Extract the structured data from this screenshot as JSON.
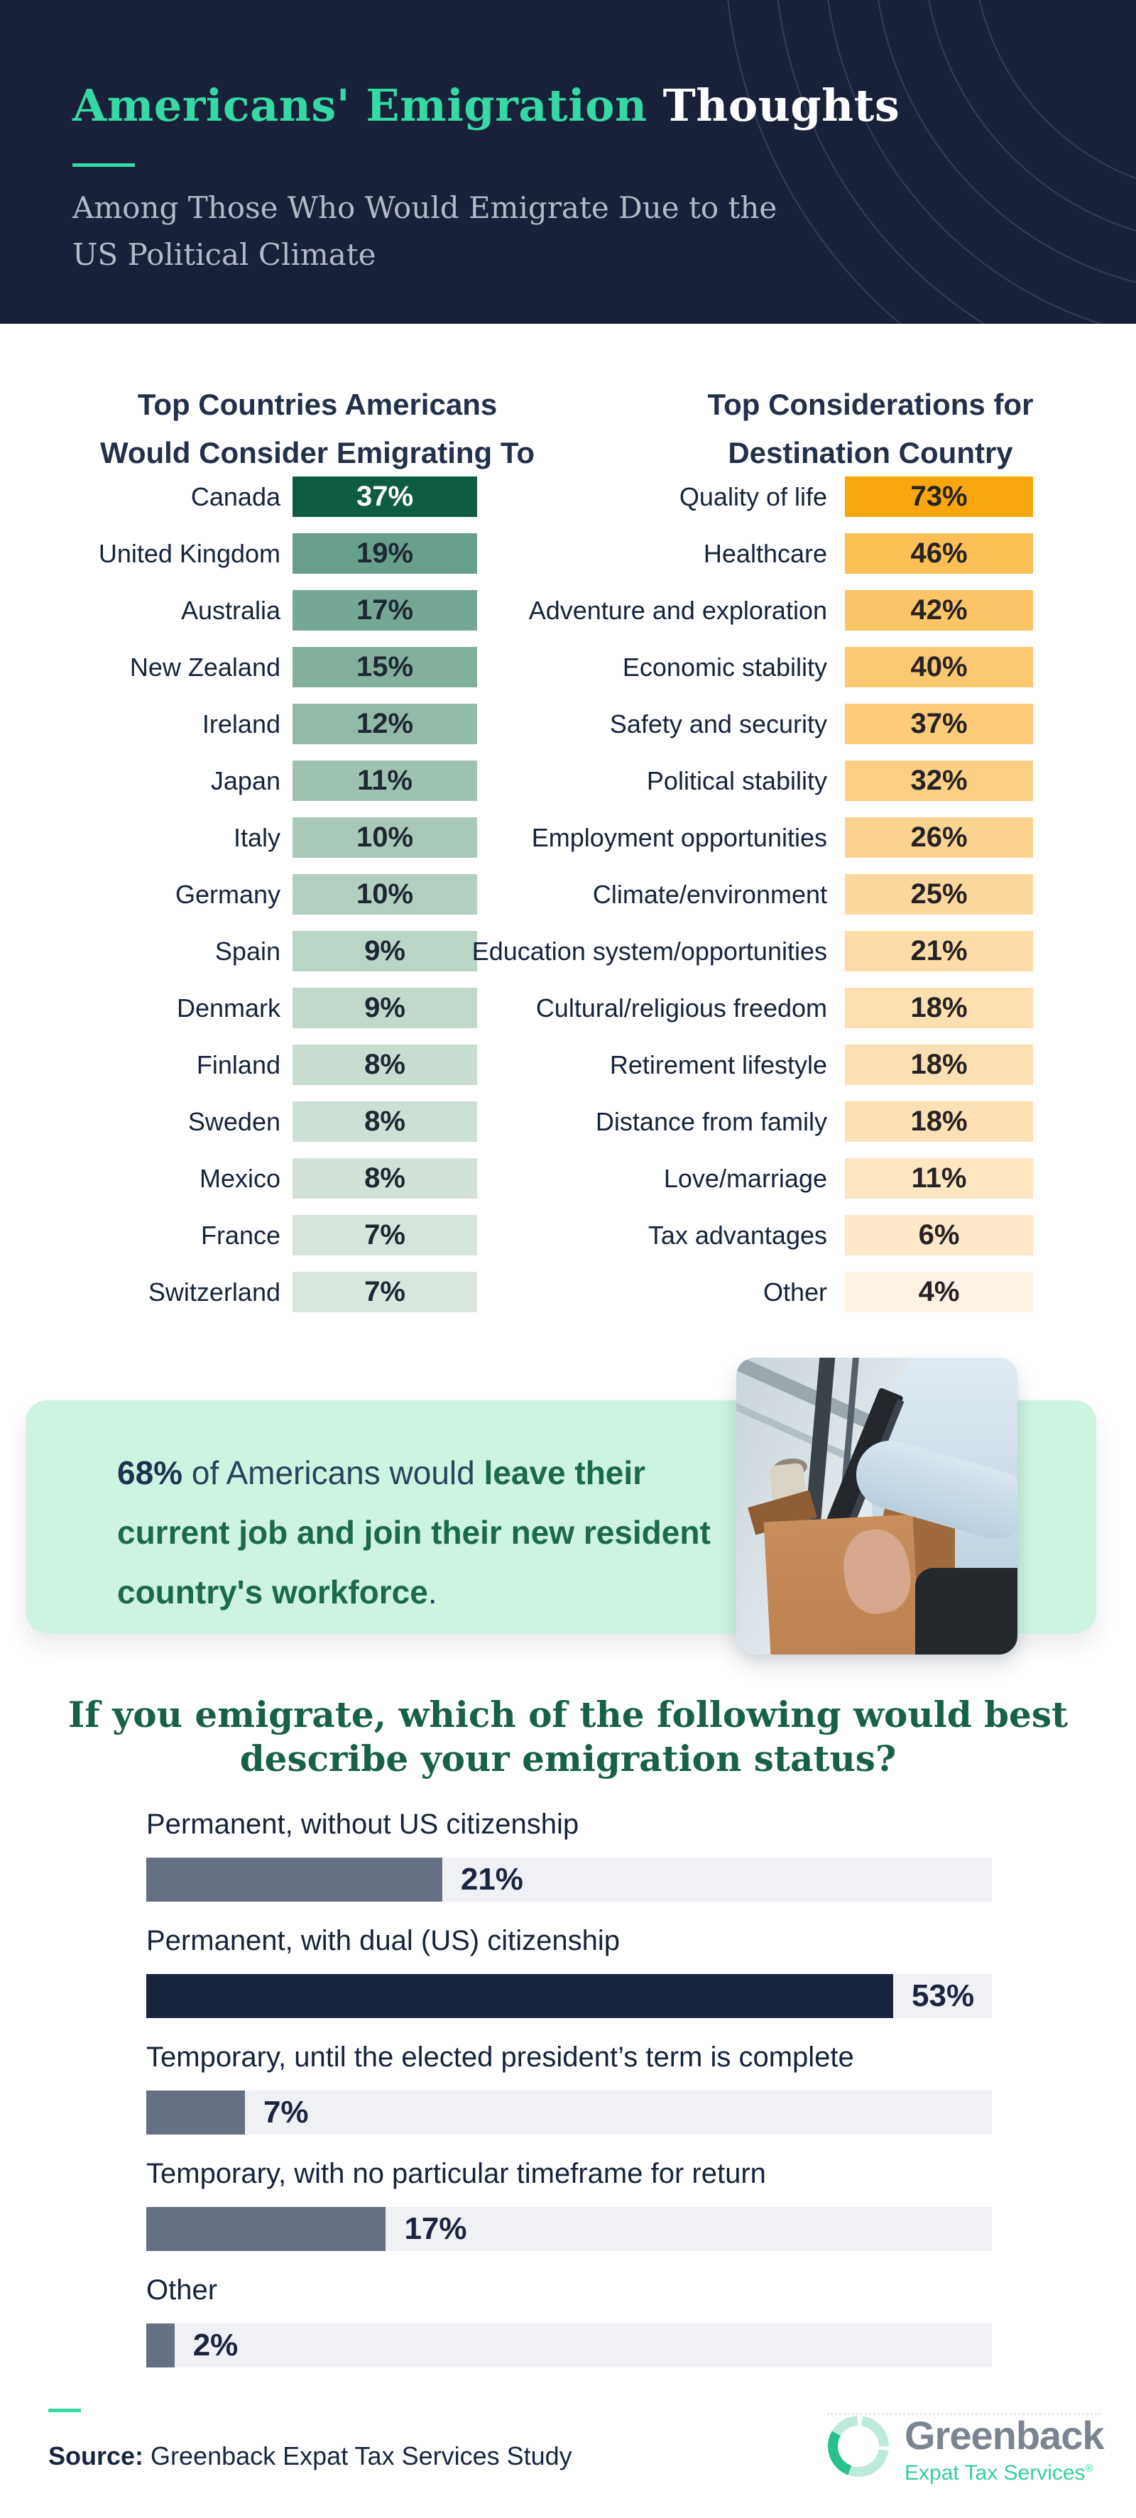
{
  "header": {
    "title_primary": "Americans' Emigration",
    "title_secondary": " Thoughts",
    "subtitle_line1": "Among Those Who Would Emigrate Due to the",
    "subtitle_line2": "US Political Climate",
    "accent_color": "#34d9a3",
    "bg_color": "#192138"
  },
  "chart_data": [
    {
      "type": "bar",
      "title": "Top Countries Americans Would Consider Emigrating To",
      "title_lines": [
        "Top Countries Americans",
        "Would Consider Emigrating To"
      ],
      "orientation": "horizontal",
      "style": "uniform-width bars, green color ramp encodes rank",
      "categories": [
        "Canada",
        "United Kingdom",
        "Australia",
        "New Zealand",
        "Ireland",
        "Japan",
        "Italy",
        "Germany",
        "Spain",
        "Denmark",
        "Finland",
        "Sweden",
        "Mexico",
        "France",
        "Switzerland"
      ],
      "values": [
        37,
        19,
        17,
        15,
        12,
        11,
        10,
        10,
        9,
        9,
        8,
        8,
        8,
        7,
        7
      ],
      "bar_colors": [
        "#0e5c43",
        "#679f8b",
        "#74a794",
        "#82b09d",
        "#92baa8",
        "#9fc2b0",
        "#aac8b8",
        "#b2cfbf",
        "#bad4c6",
        "#c1d8cb",
        "#c8dcd0",
        "#cde0d5",
        "#d2e2d8",
        "#d6e5db",
        "#dae7df"
      ],
      "value_colors": [
        "#ffffff",
        "#1e2733",
        "#1e2733",
        "#1e2733",
        "#1e2733",
        "#1e2733",
        "#1e2733",
        "#1e2733",
        "#1e2733",
        "#1e2733",
        "#1e2733",
        "#1e2733",
        "#1e2733",
        "#1e2733",
        "#1e2733"
      ]
    },
    {
      "type": "bar",
      "title": "Top Considerations for Destination Country",
      "title_lines": [
        "Top Considerations for",
        "Destination Country"
      ],
      "orientation": "horizontal",
      "style": "uniform-width bars, orange color ramp encodes rank",
      "categories": [
        "Quality of life",
        "Healthcare",
        "Adventure and exploration",
        "Economic stability",
        "Safety and security",
        "Political stability",
        "Employment opportunities",
        "Climate/environment",
        "Education system/opportunities",
        "Cultural/religious freedom",
        "Retirement lifestyle",
        "Distance from family",
        "Love/marriage",
        "Tax advantages",
        "Other"
      ],
      "values": [
        73,
        46,
        42,
        40,
        37,
        32,
        26,
        25,
        21,
        18,
        18,
        18,
        11,
        6,
        4
      ],
      "bar_colors": [
        "#f7a70d",
        "#fabf55",
        "#fbc567",
        "#fbc872",
        "#fbcb7a",
        "#fccf85",
        "#fcd492",
        "#fdd89d",
        "#fddca8",
        "#fddfb0",
        "#fde0b2",
        "#fde1b5",
        "#fee6c1",
        "#fee8c8",
        "#fdf2e3"
      ],
      "value_colors": [
        "#262225",
        "#262225",
        "#262225",
        "#262225",
        "#262225",
        "#262225",
        "#262225",
        "#262225",
        "#262225",
        "#262225",
        "#262225",
        "#262225",
        "#262225",
        "#262225",
        "#262225"
      ]
    },
    {
      "type": "bar",
      "title": "If you emigrate, which of the following would best describe your emigration status?",
      "title_lines": [
        "If you emigrate, which of the following would best",
        "describe your emigration status?"
      ],
      "orientation": "horizontal",
      "categories": [
        "Permanent, without US citizenship",
        "Permanent, with dual (US) citizenship",
        "Temporary, until the elected president’s term is complete",
        "Temporary, with no particular timeframe for return",
        "Other"
      ],
      "values": [
        21,
        53,
        7,
        17,
        2
      ],
      "axis_max": 60,
      "fill_colors": [
        "#667083",
        "#18233e",
        "#667083",
        "#667083",
        "#667083"
      ],
      "track_color": "#f0f1f4",
      "value_color": "#1b2440"
    }
  ],
  "callout": {
    "bg_color": "#cdf3e1",
    "text_plain": "68% of Americans would leave their current job and join their new resident country's workforce.",
    "segments": [
      {
        "text": "68%",
        "style": "bold-navy"
      },
      {
        "text": " of Americans would ",
        "style": "navy"
      },
      {
        "text": "leave their current job and join their new resident country's workforce",
        "style": "bold-green"
      },
      {
        "text": ".",
        "style": "navy"
      }
    ]
  },
  "footer": {
    "source_label": "Source:",
    "source_text": " Greenback Expat Tax Services Study",
    "logo_name": "Greenback",
    "logo_subtext": "Expat Tax Services",
    "logo_reg": "®"
  }
}
